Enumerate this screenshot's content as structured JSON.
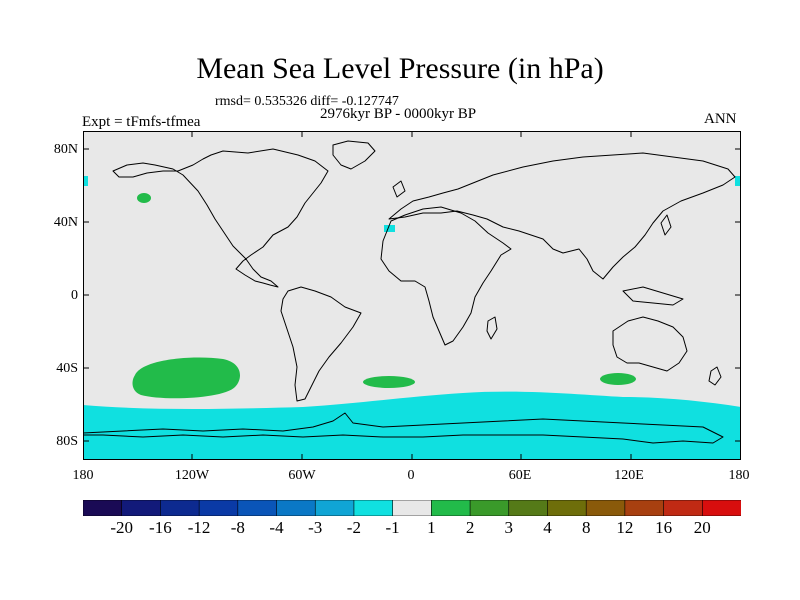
{
  "title": "Mean Sea Level Pressure (in hPa)",
  "stats": "rmsd= 0.535326 diff= -0.127747",
  "period": "2976kyr BP - 0000kyr BP",
  "experiment": "Expt = tFmfs-tfmea",
  "season": "ANN",
  "map": {
    "lat_labels": [
      "80N",
      "40N",
      "0",
      "40S",
      "80S"
    ],
    "lon_labels": [
      "180",
      "120W",
      "60W",
      "0",
      "60E",
      "120E",
      "180"
    ],
    "background_color": "#e8e8e8"
  },
  "colorbar": {
    "labels": [
      "-20",
      "-16",
      "-12",
      "-8",
      "-4",
      "-3",
      "-2",
      "-1",
      "1",
      "2",
      "3",
      "4",
      "8",
      "12",
      "16",
      "20"
    ],
    "colors": [
      "#1a0a55",
      "#121a7a",
      "#0d2a90",
      "#0a3aa6",
      "#0a55b8",
      "#0a78c6",
      "#10a5d5",
      "#10e0e0",
      "#e8e8e8",
      "#22bb4a",
      "#3a9a2a",
      "#557a18",
      "#6e6e0a",
      "#8a5a0a",
      "#a84010",
      "#c02a14",
      "#d80e0e"
    ]
  }
}
